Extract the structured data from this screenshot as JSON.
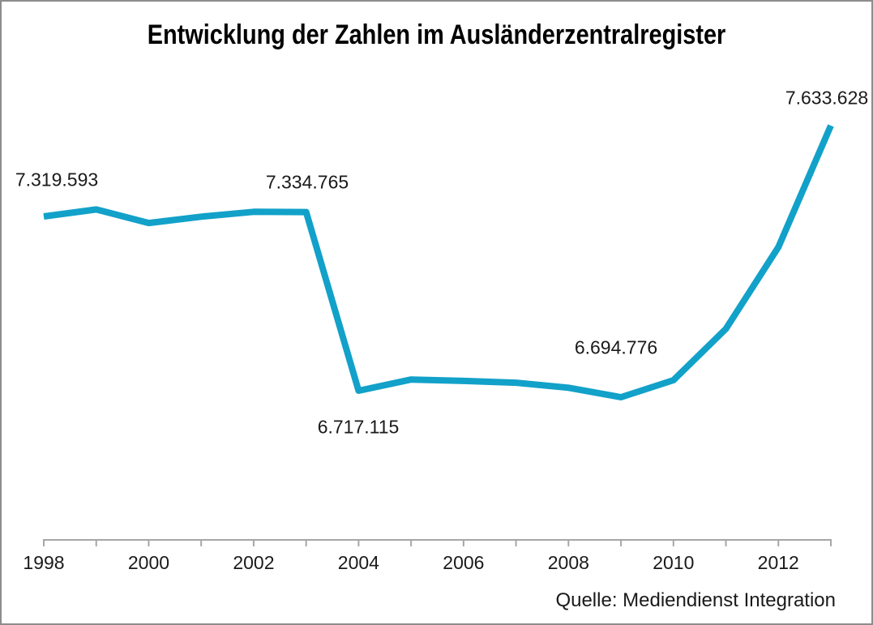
{
  "title": "Entwicklung der Zahlen im Ausländerzentralregister",
  "source": "Quelle: Mediendienst Integration",
  "colors": {
    "line": "#12A1C9",
    "axis": "#A6A6A6",
    "text": "#1A1A1A",
    "title_text": "#000000",
    "frame": "#8D8D8D",
    "background": "#FFFFFF"
  },
  "chart_data": {
    "type": "line",
    "title": "Entwicklung der Zahlen im Ausländerzentralregister",
    "x": [
      1998,
      1999,
      2000,
      2001,
      2002,
      2003,
      2004,
      2005,
      2006,
      2007,
      2008,
      2009,
      2010,
      2011,
      2012,
      2013
    ],
    "values": [
      7319593,
      7343591,
      7296817,
      7318628,
      7335592,
      7334765,
      6717115,
      6755811,
      6751002,
      6744879,
      6727618,
      6694776,
      6753621,
      6930896,
      7213708,
      7633628
    ],
    "x_tick_labels": [
      {
        "year": 1998,
        "label": "1998"
      },
      {
        "year": 2000,
        "label": "2000"
      },
      {
        "year": 2002,
        "label": "2002"
      },
      {
        "year": 2004,
        "label": "2004"
      },
      {
        "year": 2006,
        "label": "2006"
      },
      {
        "year": 2008,
        "label": "2008"
      },
      {
        "year": 2010,
        "label": "2010"
      },
      {
        "year": 2012,
        "label": "2012"
      }
    ],
    "annotations": [
      {
        "year": 1998,
        "value": 7319593,
        "label": "7.319.593",
        "position": "above"
      },
      {
        "year": 2003,
        "value": 7334765,
        "label": "7.334.765",
        "position": "above"
      },
      {
        "year": 2004,
        "value": 6717115,
        "label": "6.717.115",
        "position": "below"
      },
      {
        "year": 2009,
        "value": 6694776,
        "label": "6.694.776",
        "position": "above"
      },
      {
        "year": 2013,
        "value": 7633628,
        "label": "7.633.628",
        "position": "above"
      }
    ],
    "grid": false,
    "y_axis_visible": false,
    "legend": false,
    "source_note": "Quelle: Mediendienst Integration"
  }
}
